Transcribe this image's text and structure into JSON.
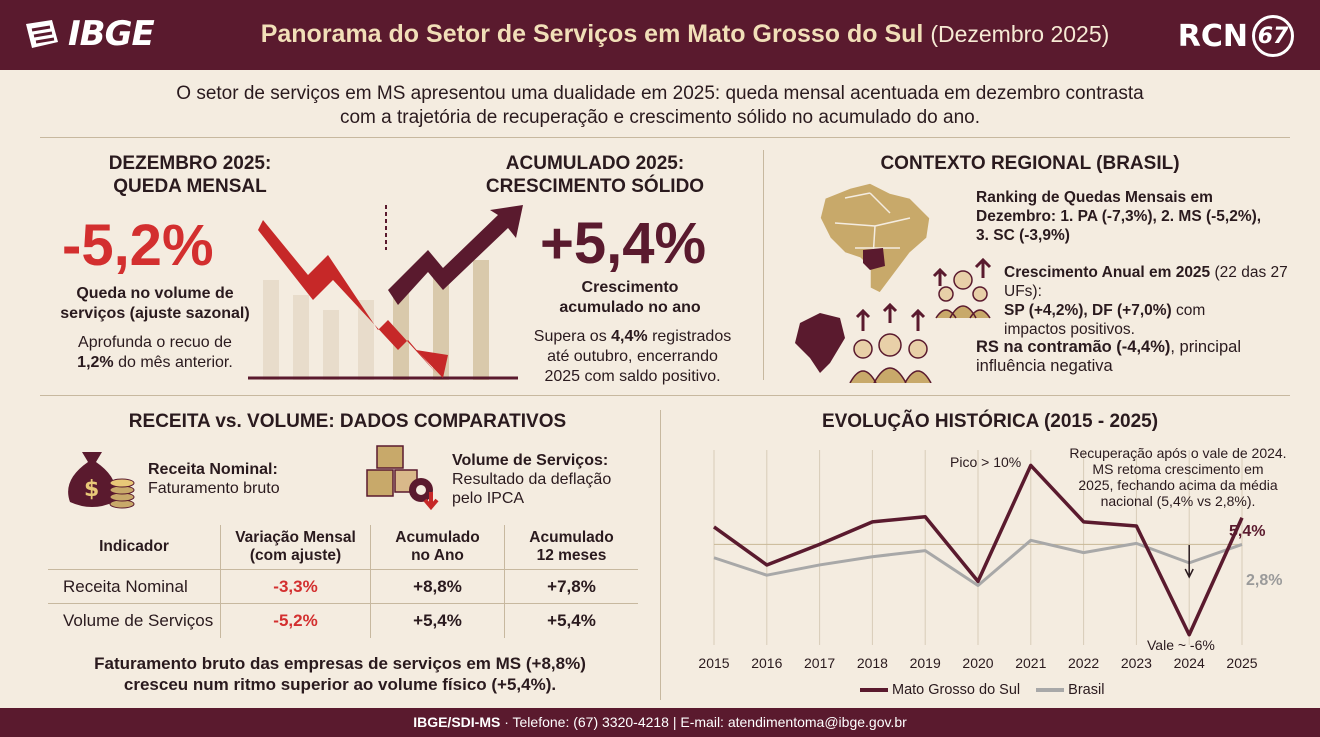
{
  "header": {
    "logo_text": "IBGE",
    "title": "Panorama do Setor de Serviços em Mato Grosso do Sul",
    "title_sub": "(Dezembro 2025)",
    "partner_logo": "RCN",
    "partner_logo_num": "67"
  },
  "intro": {
    "line1": "O setor de serviços em MS apresentou uma dualidade em 2025: queda mensal acentuada em dezembro contrasta",
    "line2": "com a trajetória de recuperação e crescimento sólido no acumulado do ano."
  },
  "dezembro": {
    "title1": "DEZEMBRO 2025:",
    "title2": "QUEDA MENSAL",
    "value": "-5,2%",
    "desc1": "Queda no volume de",
    "desc2": "serviços (ajuste sazonal)",
    "note1": "Aprofunda o recuo de",
    "note2_bold": "1,2%",
    "note2_rest": " do mês anterior."
  },
  "acumulado": {
    "title1": "ACUMULADO 2025:",
    "title2": "CRESCIMENTO SÓLIDO",
    "value": "+5,4%",
    "desc1": "Crescimento",
    "desc2": "acumulado no ano",
    "note1_pre": "Supera os ",
    "note1_bold": "4,4%",
    "note1_post": " registrados",
    "note2": "até outubro, encerrando",
    "note3": "2025 com saldo positivo."
  },
  "contexto": {
    "title": "CONTEXTO REGIONAL (BRASIL)",
    "ranking1": "Ranking de Quedas Mensais em",
    "ranking2": "Dezembro: 1. PA (-7,3%), 2. MS (-5,2%),",
    "ranking3": "3. SC (-3,9%)",
    "cresc_bold": "Crescimento Anual em 2025",
    "cresc_rest": " (22 das 27 UFs):",
    "cresc2_bold": "SP (+4,2%), DF (+7,0%)",
    "cresc2_rest": " com",
    "cresc3": "impactos positivos.",
    "rs_bold": "RS na contramão (-4,4%)",
    "rs_rest": ", principal",
    "rs2": "influência negativa"
  },
  "receita": {
    "title": "RECEITA vs. VOLUME: DADOS COMPARATIVOS",
    "nominal_label": "Receita Nominal:",
    "nominal_desc": "Faturamento bruto",
    "volume_label": "Volume de Serviços:",
    "volume_desc1": "Resultado da deflação",
    "volume_desc2": "pelo IPCA",
    "table": {
      "headers": [
        "Indicador",
        "Variação Mensal",
        "(com ajuste)",
        "Acumulado",
        "no Ano",
        "Acumulado",
        "12 meses"
      ],
      "rows": [
        {
          "name": "Receita Nominal",
          "mensal": "-3,3%",
          "ano": "+8,8%",
          "meses12": "+7,8%"
        },
        {
          "name": "Volume de Serviços",
          "mensal": "-5,2%",
          "ano": "+5,4%",
          "meses12": "+5,4%"
        }
      ]
    },
    "summary1": "Faturamento bruto das empresas de serviços em MS (+8,8%)",
    "summary2": "cresceu num ritmo superior ao volume físico (+5,4%)."
  },
  "chart_data": {
    "type": "line",
    "title": "EVOLUÇÃO HISTÓRICA (2015 - 2025)",
    "x": [
      "2015",
      "2016",
      "2017",
      "2018",
      "2019",
      "2020",
      "2021",
      "2022",
      "2023",
      "2024",
      "2025"
    ],
    "series": [
      {
        "name": "Mato Grosso do Sul",
        "color": "#5a1a2e",
        "values": [
          4.5,
          0.8,
          2.8,
          5.0,
          5.5,
          -0.8,
          10.5,
          5.0,
          4.6,
          -6.0,
          5.4
        ]
      },
      {
        "name": "Brasil",
        "color": "#a8a8a8",
        "values": [
          1.5,
          -0.2,
          0.8,
          1.6,
          2.2,
          -1.2,
          3.2,
          2.0,
          2.9,
          1.0,
          2.8
        ]
      }
    ],
    "ylim": [
      -7,
      12
    ],
    "grid": "vertical",
    "legend": "bottom",
    "annotations": {
      "pico": "Pico > 10%",
      "recup1": "Recuperação após o vale de 2024.",
      "recup2": "MS retoma crescimento em",
      "recup3": "2025, fechando acima da média",
      "recup4": "nacional (5,4% vs 2,8%).",
      "vale": "Vale ~ -6%",
      "ms_end": "5,4%",
      "br_end": "2,8%"
    }
  },
  "footer": {
    "bold": "IBGE/SDI-MS",
    "rest": " · Telefone: (67) 3320-4218 | E-mail: atendimentoma@ibge.gov.br"
  },
  "colors": {
    "header": "#5a1a2e",
    "background": "#f4ece0",
    "negative": "#d32f2f",
    "gold": "#c8a96a"
  }
}
